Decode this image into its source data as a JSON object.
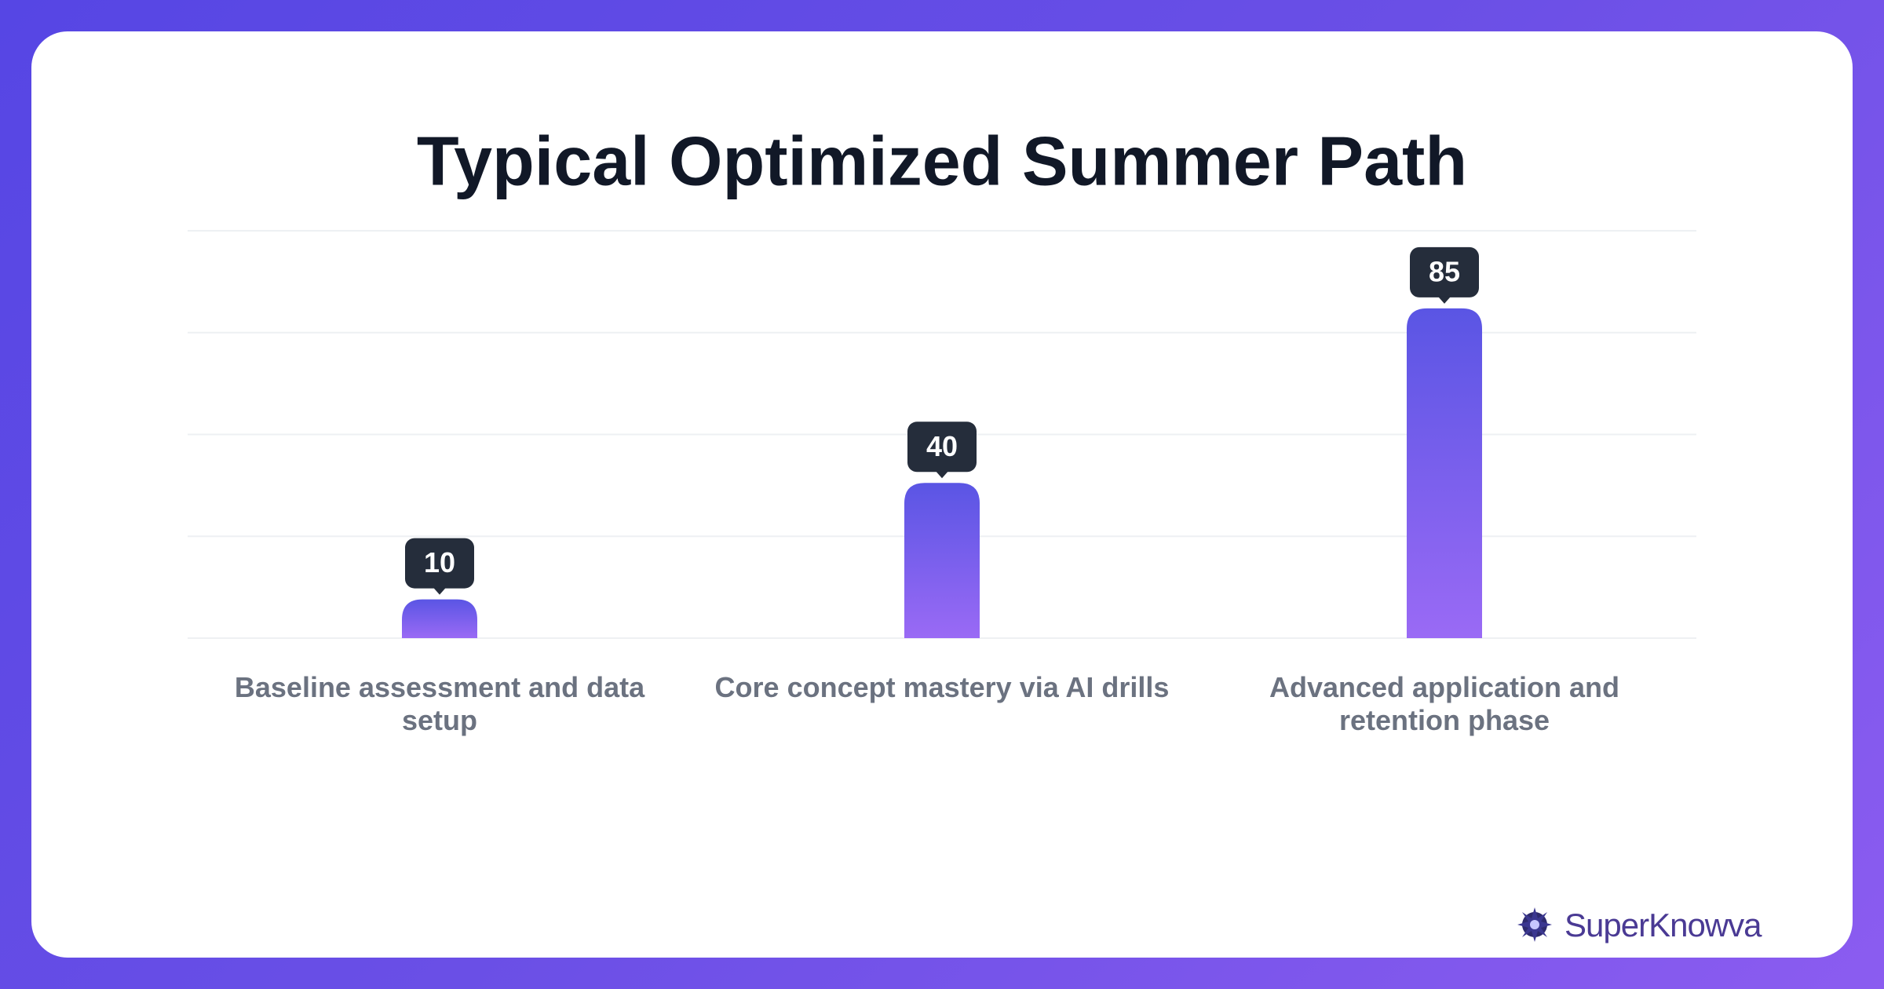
{
  "chart_data": {
    "type": "bar",
    "title": "Typical Optimized Summer Path",
    "categories": [
      "Baseline assessment and data setup",
      "Core concept mastery via AI drills",
      "Advanced application and retention phase"
    ],
    "values": [
      10,
      40,
      85
    ],
    "colors": [
      "#5a55e4",
      "#9a6af5"
    ],
    "ylim": [
      0,
      105
    ],
    "yticks": [
      0,
      26.25,
      52.5,
      78.75,
      105
    ],
    "grid": true
  },
  "brand": "SuperKnowva"
}
